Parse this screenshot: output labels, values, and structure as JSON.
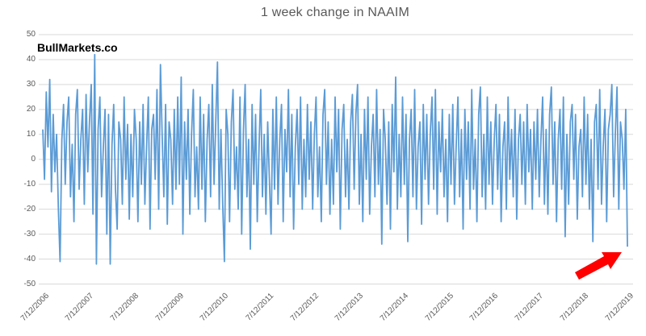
{
  "header": {
    "title": "1 week change in NAAIM",
    "watermark": "BullMarkets.co"
  },
  "chart_data": {
    "type": "line",
    "title": "1 week change in NAAIM",
    "xlabel": "",
    "ylabel": "",
    "ylim": [
      -50,
      50
    ],
    "ytick_step": 10,
    "yticks": [
      50,
      40,
      30,
      20,
      10,
      0,
      -10,
      -20,
      -30,
      -40,
      -50
    ],
    "xticks": [
      "7/12/2006",
      "7/12/2007",
      "7/12/2008",
      "7/12/2009",
      "7/12/2010",
      "7/12/2011",
      "7/12/2012",
      "7/12/2013",
      "7/12/2014",
      "7/12/2015",
      "7/12/2016",
      "7/12/2017",
      "7/12/2018",
      "7/12/2019"
    ],
    "grid": "horizontal",
    "legend": "none",
    "line_color": "#5B9BD5",
    "grid_color": "#D9D9D9",
    "estimation_note": "weekly series visually estimated at ~biweekly resolution from 7/12/2006 to 7/12/2019",
    "values": [
      12,
      -8,
      27,
      5,
      32,
      -13,
      18,
      -5,
      10,
      -20,
      -41,
      8,
      22,
      -10,
      15,
      25,
      -15,
      6,
      -25,
      18,
      28,
      -12,
      8,
      20,
      -18,
      26,
      -5,
      15,
      30,
      -22,
      42,
      -42,
      12,
      25,
      -15,
      5,
      20,
      -30,
      18,
      -42,
      6,
      22,
      -12,
      -28,
      15,
      8,
      -18,
      25,
      -8,
      14,
      -24,
      10,
      -15,
      20,
      8,
      -25,
      15,
      -10,
      22,
      -18,
      5,
      25,
      -28,
      12,
      18,
      -8,
      28,
      -20,
      38,
      10,
      -15,
      22,
      -26,
      15,
      8,
      -18,
      20,
      -12,
      25,
      -10,
      33,
      -30,
      15,
      -8,
      20,
      -22,
      10,
      28,
      -15,
      5,
      -20,
      25,
      -12,
      18,
      -25,
      8,
      22,
      -15,
      30,
      -10,
      15,
      39,
      -20,
      12,
      -18,
      -41,
      20,
      10,
      -25,
      15,
      28,
      -12,
      5,
      -20,
      25,
      -30,
      12,
      30,
      -15,
      8,
      -36,
      22,
      -10,
      18,
      -25,
      5,
      28,
      -15,
      10,
      -22,
      15,
      -8,
      -30,
      20,
      -12,
      25,
      -18,
      8,
      22,
      -25,
      12,
      -5,
      28,
      -15,
      18,
      -28,
      5,
      20,
      -10,
      25,
      -20,
      8,
      -15,
      22,
      -8,
      15,
      -20,
      10,
      25,
      -15,
      5,
      -25,
      18,
      28,
      -10,
      15,
      -22,
      8,
      -18,
      25,
      -5,
      20,
      -28,
      12,
      22,
      -15,
      8,
      -20,
      15,
      26,
      -12,
      18,
      30,
      -18,
      10,
      -25,
      20,
      -8,
      25,
      -22,
      5,
      18,
      -15,
      28,
      -10,
      12,
      -34,
      20,
      8,
      -18,
      15,
      -28,
      22,
      -5,
      33,
      -20,
      10,
      -15,
      25,
      -10,
      18,
      -33,
      8,
      20,
      -15,
      28,
      -20,
      5,
      15,
      -26,
      22,
      -8,
      18,
      -18,
      10,
      25,
      -12,
      28,
      -22,
      15,
      -5,
      20,
      -15,
      8,
      -25,
      18,
      -10,
      22,
      -18,
      5,
      25,
      -15,
      12,
      -28,
      20,
      -8,
      15,
      -20,
      28,
      -12,
      8,
      -25,
      18,
      29,
      -15,
      10,
      -20,
      25,
      -10,
      15,
      -18,
      8,
      22,
      -12,
      18,
      -25,
      5,
      15,
      -20,
      25,
      -8,
      12,
      -15,
      20,
      -24,
      8,
      18,
      -10,
      15,
      -18,
      22,
      -5,
      12,
      -20,
      15,
      -8,
      20,
      -15,
      8,
      25,
      -18,
      12,
      -22,
      18,
      29,
      -10,
      15,
      -25,
      8,
      20,
      -12,
      25,
      -31,
      10,
      -18,
      15,
      22,
      -8,
      18,
      -24,
      5,
      12,
      -15,
      25,
      -10,
      18,
      -20,
      8,
      -33,
      15,
      22,
      -12,
      28,
      -18,
      5,
      20,
      -25,
      12,
      18,
      30,
      -15,
      10,
      29,
      -20,
      15,
      8,
      -12,
      20,
      -35
    ],
    "annotation": {
      "shape": "arrow",
      "color": "#FF0000",
      "points_to_value": -35,
      "points_to_x": "7/12/2019"
    }
  }
}
